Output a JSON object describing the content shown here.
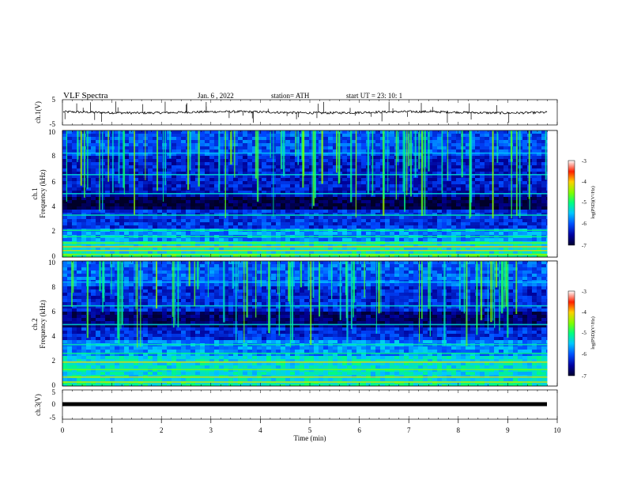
{
  "header": {
    "title": "VLF  Spectra",
    "date": "Jan.  6  , 2022",
    "station": "station= ATH",
    "start": "start  UT  =    23: 10: 1"
  },
  "axes": {
    "ch1_label": "ch.1(V)",
    "ch3_label": "ch.3(V)",
    "freq_label_ch1": [
      "ch.1",
      "Frequency  (kHz)"
    ],
    "freq_label_ch2": [
      "ch.2",
      "Frequency  (kHz)"
    ],
    "time_label": "Time  (min)",
    "colorbar_label": "log(PSD)(V²/Hz)"
  },
  "chart_data": [
    {
      "type": "line",
      "panel": "ch.1",
      "ylabel": "ch.1(V)",
      "ylim": [
        -5,
        5
      ],
      "yticks": [
        "5",
        "-5"
      ],
      "xlim": [
        0,
        10
      ],
      "baseline": 0,
      "note_visible_trace": "noisy trace near 0 V with sporadic spikes"
    },
    {
      "type": "heatmap",
      "panel": "ch.1",
      "ylabel": "ch.1 Frequency (kHz)",
      "ylim": [
        0,
        10
      ],
      "yticks": [
        "0",
        "2",
        "4",
        "6",
        "8",
        "10"
      ],
      "xlim": [
        0,
        9.8
      ],
      "colorbar": {
        "ticks": [
          "-3",
          "-4",
          "-5",
          "-6",
          "-7"
        ],
        "range": [
          -7,
          -3
        ]
      }
    },
    {
      "type": "heatmap",
      "panel": "ch.2",
      "ylabel": "ch.2 Frequency (kHz)",
      "ylim": [
        0,
        10
      ],
      "yticks": [
        "0",
        "2",
        "4",
        "6",
        "8",
        "10"
      ],
      "xlim": [
        0,
        9.8
      ],
      "colorbar": {
        "ticks": [
          "-3",
          "-4",
          "-5",
          "-6",
          "-7"
        ],
        "range": [
          -7,
          -3
        ]
      }
    },
    {
      "type": "line",
      "panel": "ch.3",
      "ylabel": "ch.3(V)",
      "ylim": [
        -5,
        5
      ],
      "yticks": [
        "5",
        "0",
        "-5"
      ],
      "xlim": [
        0,
        10
      ],
      "baseline": 0,
      "note_visible_trace": "flat thick line at 0 V"
    }
  ],
  "x_axis": {
    "label": "Time  (min)",
    "ticks": [
      "0",
      "1",
      "2",
      "3",
      "4",
      "5",
      "6",
      "7",
      "8",
      "9",
      "10"
    ],
    "range": [
      0,
      10
    ]
  },
  "colors": {
    "low": "#000040",
    "mid_low": "#0040ff",
    "mid": "#00ffff",
    "mid_high": "#00ff40",
    "high": "#ffff00",
    "top": "#ff0000",
    "ceiling": "#ffffff"
  }
}
